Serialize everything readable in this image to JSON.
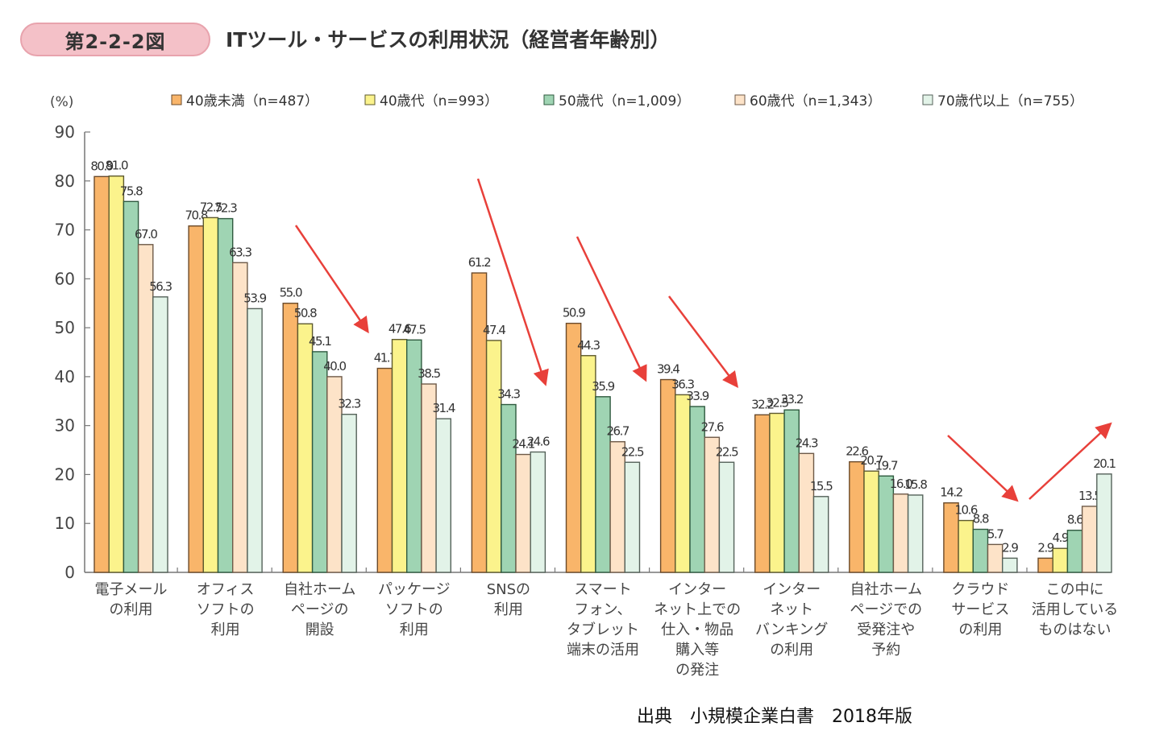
{
  "figure": {
    "badge": "第2-2-2図",
    "title": "ITツール・サービスの利用状況（経営者年齢別）"
  },
  "source": "出典　小規模企業白書　2018年版",
  "chart_data": {
    "type": "bar",
    "title": "ITツール・サービスの利用状況（経営者年齢別）",
    "xlabel": "",
    "ylabel": "(%)",
    "ylim": [
      0,
      90
    ],
    "yticks": [
      0,
      10,
      20,
      30,
      40,
      50,
      60,
      70,
      80,
      90
    ],
    "grid": false,
    "legend_position": "top",
    "categories": [
      [
        "電子メール",
        "の利用"
      ],
      [
        "オフィス",
        "ソフトの",
        "利用"
      ],
      [
        "自社ホーム",
        "ページの",
        "開設"
      ],
      [
        "パッケージ",
        "ソフトの",
        "利用"
      ],
      [
        "SNSの",
        "利用"
      ],
      [
        "スマート",
        "フォン、",
        "タブレット",
        "端末の活用"
      ],
      [
        "インター",
        "ネット上での",
        "仕入・物品",
        "購入等",
        "の発注"
      ],
      [
        "インター",
        "ネット",
        "バンキング",
        "の利用"
      ],
      [
        "自社ホーム",
        "ページでの",
        "受発注や",
        "予約"
      ],
      [
        "クラウド",
        "サービス",
        "の利用"
      ],
      [
        "この中に",
        "活用している",
        "ものはない"
      ]
    ],
    "series": [
      {
        "name": "40歳未満（n=487）",
        "color": "#f9b56a",
        "stroke": "#6b4a2a",
        "values": [
          80.9,
          70.8,
          55.0,
          41.7,
          61.2,
          50.9,
          39.4,
          32.2,
          22.6,
          14.2,
          2.9
        ]
      },
      {
        "name": "40歳代（n=993）",
        "color": "#fbf38c",
        "stroke": "#5e5a2e",
        "values": [
          81.0,
          72.5,
          50.8,
          47.6,
          47.4,
          44.3,
          36.3,
          32.5,
          20.7,
          10.6,
          4.9
        ]
      },
      {
        "name": "50歳代（n=1,009）",
        "color": "#9fd4b3",
        "stroke": "#2f5a3f",
        "values": [
          75.8,
          72.3,
          45.1,
          47.5,
          34.3,
          35.9,
          33.9,
          33.2,
          19.7,
          8.8,
          8.6
        ]
      },
      {
        "name": "60歳代（n=1,343）",
        "color": "#fde3c8",
        "stroke": "#6e5a48",
        "values": [
          67.0,
          63.3,
          40.0,
          38.5,
          24.1,
          26.7,
          27.6,
          24.3,
          16.0,
          5.7,
          13.5
        ]
      },
      {
        "name": "70歳代以上（n=755）",
        "color": "#e2f3e8",
        "stroke": "#55625a",
        "values": [
          56.3,
          53.9,
          32.3,
          31.4,
          24.6,
          22.5,
          22.5,
          15.5,
          15.8,
          2.9,
          20.1
        ]
      }
    ],
    "annotations": [
      {
        "type": "arrow",
        "direction": "down",
        "near_category": 2,
        "color": "#e8403a"
      },
      {
        "type": "arrow",
        "direction": "down",
        "near_category": 4,
        "color": "#e8403a"
      },
      {
        "type": "arrow",
        "direction": "down",
        "near_category": 5,
        "color": "#e8403a"
      },
      {
        "type": "arrow",
        "direction": "down",
        "near_category": 6,
        "color": "#e8403a"
      },
      {
        "type": "arrow",
        "direction": "down",
        "near_category": 9,
        "color": "#e8403a"
      },
      {
        "type": "arrow",
        "direction": "up",
        "near_category": 10,
        "color": "#e8403a"
      }
    ]
  }
}
